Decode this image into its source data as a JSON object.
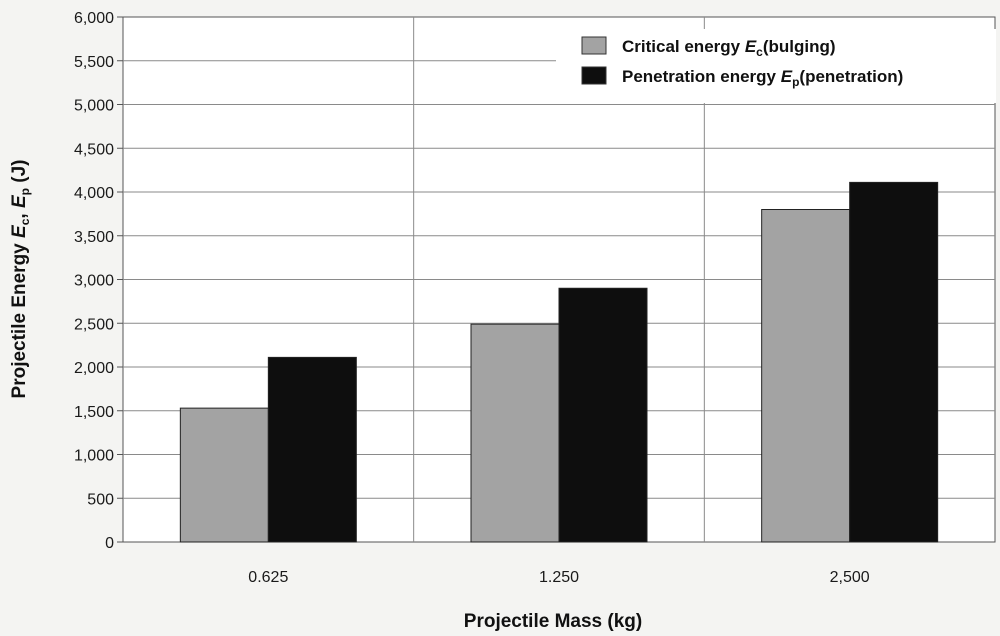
{
  "chart_data": {
    "type": "bar",
    "categories": [
      "0.625",
      "1.250",
      "2,500"
    ],
    "series": [
      {
        "name_prefix": "Critical energy ",
        "name_sym": "E",
        "name_sub": "c",
        "name_suffix": "(bulging)",
        "color": "#a3a3a3",
        "values": [
          1530,
          2490,
          3800
        ]
      },
      {
        "name_prefix": "Penetration energy ",
        "name_sym": "E",
        "name_sub": "p",
        "name_suffix": "(penetration)",
        "color": "#0e0e0e",
        "values": [
          2110,
          2900,
          4110
        ]
      }
    ],
    "xlabel": "Projectile Mass (kg)",
    "ylabel_prefix": "Projectile Energy ",
    "ylabel_sym1": "E",
    "ylabel_sub1": "c",
    "ylabel_sep": ", ",
    "ylabel_sym2": "E",
    "ylabel_sub2": "p",
    "ylabel_suffix": " (J)",
    "ylim": [
      0,
      6000
    ],
    "yticks": [
      "0",
      "500",
      "1,000",
      "1,500",
      "2,000",
      "2,500",
      "3,000",
      "3,500",
      "4,000",
      "4,500",
      "5,000",
      "5,500",
      "6,000"
    ],
    "grid": true,
    "legend_position": "top-right"
  }
}
